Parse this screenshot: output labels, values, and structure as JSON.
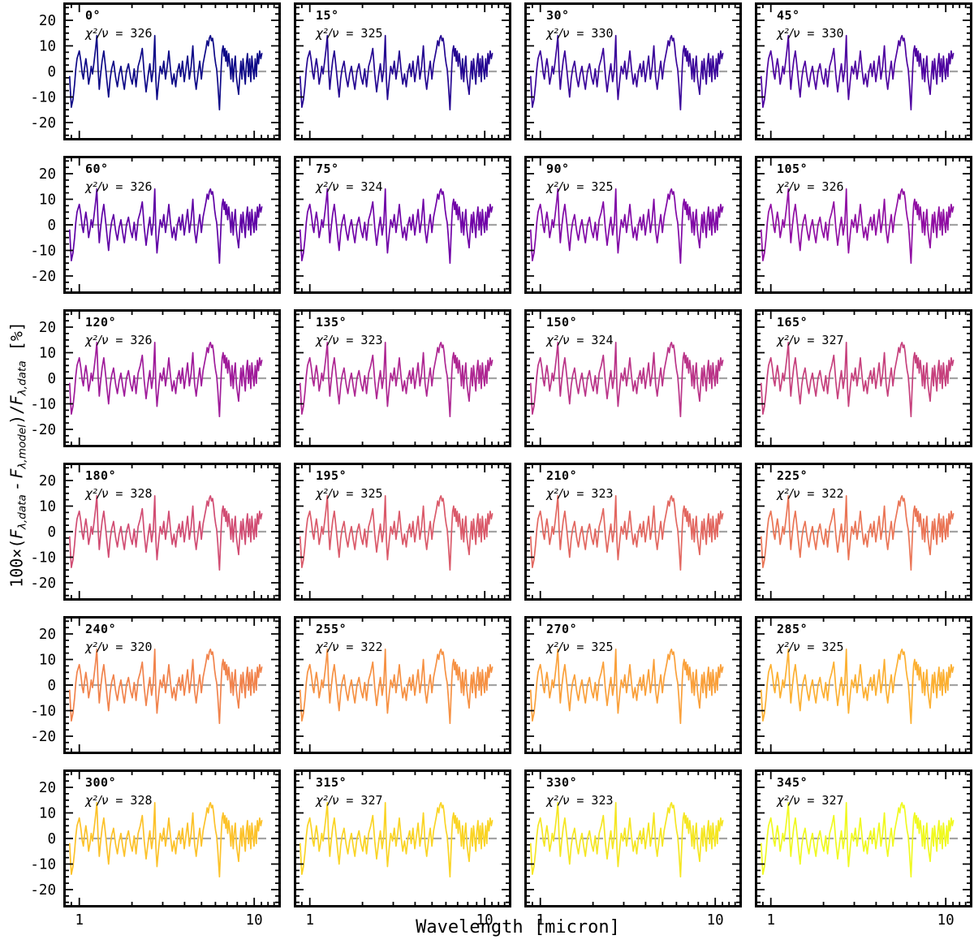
{
  "figure": {
    "background": "#ffffff",
    "text_color": "#000000"
  },
  "chart_data": {
    "type": "line",
    "description": "6x4 grid of spectral fit residual panels, one per phase angle",
    "grid": {
      "rows": 6,
      "cols": 4
    },
    "xlabel": "Wavelength [micron]",
    "ylabel": "100×(F(λ,data) - F(λ,model)) / F(λ,data)  [%]",
    "ylabel_parts": [
      {
        "t": "100×("
      },
      {
        "t": "F",
        "it": true
      },
      {
        "t": "λ,data",
        "sub": true
      },
      {
        "t": " - ",
        "it": true
      },
      {
        "t": "F",
        "it": true
      },
      {
        "t": "λ,model",
        "sub": true
      },
      {
        "t": ")/",
        "it": false
      },
      {
        "t": "F",
        "it": true
      },
      {
        "t": "λ,data",
        "sub": true
      },
      {
        "t": "  [%]"
      }
    ],
    "x_scale": "log",
    "x_range": [
      0.81,
      14.2
    ],
    "y_range": [
      -27,
      27
    ],
    "x_major_ticks": [
      1,
      10
    ],
    "x_major_tick_labels": [
      "1",
      "10"
    ],
    "x_minor_ticks": [
      0.9,
      2,
      3,
      4,
      5,
      6,
      7,
      8,
      9,
      11,
      12,
      13,
      14
    ],
    "y_major_ticks": [
      20,
      10,
      0,
      -10,
      -20
    ],
    "y_minor_ticks": [
      25,
      22.5,
      17.5,
      15,
      12.5,
      7.5,
      5,
      2.5,
      -2.5,
      -5,
      -7.5,
      -12.5,
      -15,
      -17.5,
      -22.5,
      -25
    ],
    "zero_line": {
      "value": 0,
      "color": "#a3a3a3",
      "dash": "10 7",
      "width": 2.2
    },
    "line_width": 1.7,
    "frame_color": "#000000",
    "chi_prefix": "χ²/ν",
    "panels": [
      {
        "angle_label": "0°",
        "chi_value": " = 326",
        "chi2_per_nu": 326,
        "color": "#0d0887"
      },
      {
        "angle_label": "15°",
        "chi_value": " = 325",
        "chi2_per_nu": 325,
        "color": "#240691"
      },
      {
        "angle_label": "30°",
        "chi_value": " = 330",
        "chi2_per_nu": 330,
        "color": "#3a059a"
      },
      {
        "angle_label": "45°",
        "chi_value": " = 330",
        "chi2_per_nu": 330,
        "color": "#4e03a0"
      },
      {
        "angle_label": "60°",
        "chi_value": " = 326",
        "chi2_per_nu": 326,
        "color": "#5f01a5"
      },
      {
        "angle_label": "75°",
        "chi_value": " = 324",
        "chi2_per_nu": 324,
        "color": "#7002a7"
      },
      {
        "angle_label": "90°",
        "chi_value": " = 325",
        "chi2_per_nu": 325,
        "color": "#8108a6"
      },
      {
        "angle_label": "105°",
        "chi_value": " = 326",
        "chi2_per_nu": 326,
        "color": "#900ea3"
      },
      {
        "angle_label": "120°",
        "chi_value": " = 326",
        "chi2_per_nu": 326,
        "color": "#9f1b9a"
      },
      {
        "angle_label": "135°",
        "chi_value": " = 323",
        "chi2_per_nu": 323,
        "color": "#ae2792"
      },
      {
        "angle_label": "150°",
        "chi_value": " = 324",
        "chi2_per_nu": 324,
        "color": "#ba3488"
      },
      {
        "angle_label": "165°",
        "chi_value": " = 327",
        "chi2_per_nu": 327,
        "color": "#c6417d"
      },
      {
        "angle_label": "180°",
        "chi_value": " = 328",
        "chi2_per_nu": 328,
        "color": "#d14d73"
      },
      {
        "angle_label": "195°",
        "chi_value": " = 325",
        "chi2_per_nu": 325,
        "color": "#da5a6a"
      },
      {
        "angle_label": "210°",
        "chi_value": " = 323",
        "chi2_per_nu": 323,
        "color": "#e26760"
      },
      {
        "angle_label": "225°",
        "chi_value": " = 322",
        "chi2_per_nu": 322,
        "color": "#ea7556"
      },
      {
        "angle_label": "240°",
        "chi_value": " = 320",
        "chi2_per_nu": 320,
        "color": "#f1834c"
      },
      {
        "angle_label": "255°",
        "chi_value": " = 322",
        "chi2_per_nu": 322,
        "color": "#f69143"
      },
      {
        "angle_label": "270°",
        "chi_value": " = 325",
        "chi2_per_nu": 325,
        "color": "#faa03a"
      },
      {
        "angle_label": "285°",
        "chi_value": " = 325",
        "chi2_per_nu": 325,
        "color": "#fcb032"
      },
      {
        "angle_label": "300°",
        "chi_value": " = 328",
        "chi2_per_nu": 328,
        "color": "#fcc22a"
      },
      {
        "angle_label": "315°",
        "chi_value": " = 327",
        "chi2_per_nu": 327,
        "color": "#fad425"
      },
      {
        "angle_label": "330°",
        "chi_value": " = 323",
        "chi2_per_nu": 323,
        "color": "#f5e623"
      },
      {
        "angle_label": "345°",
        "chi_value": " = 327",
        "chi2_per_nu": 327,
        "color": "#f0f921"
      }
    ],
    "residual_points_approx": [
      [
        0.88,
        -2
      ],
      [
        0.89,
        -8
      ],
      [
        0.9,
        -14
      ],
      [
        0.92,
        -11
      ],
      [
        0.94,
        -5
      ],
      [
        0.955,
        1
      ],
      [
        0.97,
        5
      ],
      [
        1,
        8
      ],
      [
        1.02,
        4
      ],
      [
        1.04,
        -1
      ],
      [
        1.055,
        -3
      ],
      [
        1.07,
        1
      ],
      [
        1.09,
        5
      ],
      [
        1.11,
        1
      ],
      [
        1.13,
        -5
      ],
      [
        1.15,
        -2
      ],
      [
        1.17,
        2
      ],
      [
        1.19,
        -1
      ],
      [
        1.21,
        3
      ],
      [
        1.24,
        9
      ],
      [
        1.26,
        14
      ],
      [
        1.28,
        1
      ],
      [
        1.3,
        -7
      ],
      [
        1.32,
        -2
      ],
      [
        1.35,
        4
      ],
      [
        1.38,
        8
      ],
      [
        1.41,
        2
      ],
      [
        1.44,
        -4
      ],
      [
        1.47,
        -10
      ],
      [
        1.5,
        -3
      ],
      [
        1.53,
        1
      ],
      [
        1.57,
        4
      ],
      [
        1.61,
        -2
      ],
      [
        1.65,
        -6
      ],
      [
        1.69,
        -1
      ],
      [
        1.73,
        2
      ],
      [
        1.77,
        -3
      ],
      [
        1.81,
        -7
      ],
      [
        1.86,
        0
      ],
      [
        1.91,
        3
      ],
      [
        1.96,
        -2
      ],
      [
        2.01,
        -5
      ],
      [
        2.06,
        1
      ],
      [
        2.11,
        -6
      ],
      [
        2.17,
        2
      ],
      [
        2.23,
        5
      ],
      [
        2.29,
        9
      ],
      [
        2.35,
        -1
      ],
      [
        2.41,
        -8
      ],
      [
        2.47,
        -2
      ],
      [
        2.53,
        3
      ],
      [
        2.59,
        -4
      ],
      [
        2.65,
        1
      ],
      [
        2.7,
        14
      ],
      [
        2.74,
        -3
      ],
      [
        2.78,
        -11
      ],
      [
        2.84,
        -4
      ],
      [
        2.9,
        2
      ],
      [
        2.97,
        -1
      ],
      [
        3.04,
        4
      ],
      [
        3.11,
        -3
      ],
      [
        3.18,
        2
      ],
      [
        3.25,
        8
      ],
      [
        3.32,
        1
      ],
      [
        3.4,
        -5
      ],
      [
        3.48,
        -1
      ],
      [
        3.56,
        -6
      ],
      [
        3.64,
        0
      ],
      [
        3.72,
        3
      ],
      [
        3.8,
        -2
      ],
      [
        3.89,
        4
      ],
      [
        3.98,
        -4
      ],
      [
        4.07,
        1
      ],
      [
        4.16,
        6
      ],
      [
        4.26,
        -3
      ],
      [
        4.36,
        2
      ],
      [
        4.46,
        10
      ],
      [
        4.56,
        -2
      ],
      [
        4.66,
        -7
      ],
      [
        4.77,
        -1
      ],
      [
        4.88,
        4
      ],
      [
        4.99,
        -3
      ],
      [
        5.1,
        3
      ],
      [
        5.2,
        6
      ],
      [
        5.3,
        9
      ],
      [
        5.38,
        12
      ],
      [
        5.46,
        10
      ],
      [
        5.54,
        13
      ],
      [
        5.62,
        14
      ],
      [
        5.7,
        12
      ],
      [
        5.78,
        13
      ],
      [
        5.86,
        10
      ],
      [
        5.94,
        6
      ],
      [
        6.02,
        3
      ],
      [
        6.1,
        1
      ],
      [
        6.18,
        -4
      ],
      [
        6.26,
        -10
      ],
      [
        6.33,
        -15
      ],
      [
        6.4,
        -7
      ],
      [
        6.48,
        2
      ],
      [
        6.56,
        8
      ],
      [
        6.64,
        10
      ],
      [
        6.72,
        6
      ],
      [
        6.8,
        9
      ],
      [
        6.88,
        4
      ],
      [
        6.96,
        8
      ],
      [
        7.05,
        2
      ],
      [
        7.15,
        7
      ],
      [
        7.25,
        3
      ],
      [
        7.36,
        -3
      ],
      [
        7.47,
        5
      ],
      [
        7.58,
        -4
      ],
      [
        7.69,
        2
      ],
      [
        7.8,
        6
      ],
      [
        7.91,
        -2
      ],
      [
        8.03,
        -6
      ],
      [
        8.15,
        -9
      ],
      [
        8.27,
        -2
      ],
      [
        8.39,
        4
      ],
      [
        8.51,
        -3
      ],
      [
        8.63,
        5
      ],
      [
        8.76,
        0
      ],
      [
        8.89,
        -5
      ],
      [
        9.02,
        3
      ],
      [
        9.15,
        7
      ],
      [
        9.28,
        -2
      ],
      [
        9.42,
        5
      ],
      [
        9.56,
        -4
      ],
      [
        9.7,
        6
      ],
      [
        9.84,
        1
      ],
      [
        9.98,
        -3
      ],
      [
        10.13,
        5
      ],
      [
        10.28,
        -2
      ],
      [
        10.43,
        7
      ],
      [
        10.58,
        3
      ],
      [
        10.74,
        8
      ],
      [
        10.9,
        5
      ],
      [
        11.06,
        7
      ]
    ]
  }
}
